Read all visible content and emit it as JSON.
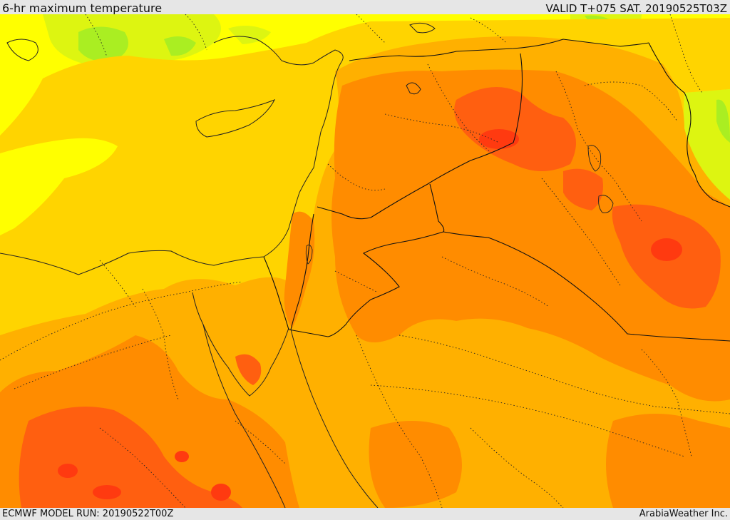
{
  "header": {
    "title": "6-hr maximum temperature",
    "valid_time": "VALID T+075 SAT. 20190525T03Z"
  },
  "footer": {
    "model_run": "ECMWF MODEL RUN: 20190522T00Z",
    "credit": "ArabiaWeather Inc."
  },
  "palette": {
    "green": "#aaee22",
    "yellow_green": "#ddf511",
    "yellow": "#ffff00",
    "gold": "#ffd400",
    "amber": "#ffb000",
    "orange": "#ff8c00",
    "red_orange": "#ff5f10",
    "red": "#ff3a10",
    "coast_line": "#222222",
    "border_line": "#111111"
  }
}
